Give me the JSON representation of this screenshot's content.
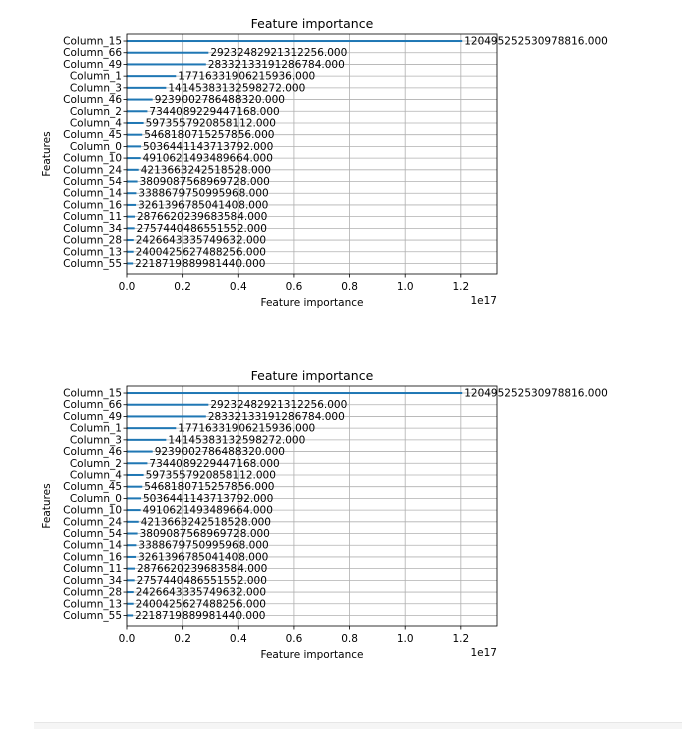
{
  "chart_data": [
    {
      "type": "bar",
      "orientation": "horizontal",
      "title": "Feature importance",
      "xlabel": "Feature importance",
      "ylabel": "Features",
      "x_offset_label": "1e17",
      "xlim": [
        0,
        1.33
      ],
      "xticks": [
        0.0,
        0.2,
        0.4,
        0.6,
        0.8,
        1.0,
        1.2
      ],
      "xtick_labels": [
        "0.0",
        "0.2",
        "0.4",
        "0.6",
        "0.8",
        "1.0",
        "1.2"
      ],
      "grid": true,
      "categories": [
        "Column_15",
        "Column_66",
        "Column_49",
        "Column_1",
        "Column_3",
        "Column_46",
        "Column_2",
        "Column_4",
        "Column_45",
        "Column_0",
        "Column_10",
        "Column_24",
        "Column_54",
        "Column_14",
        "Column_16",
        "Column_11",
        "Column_34",
        "Column_28",
        "Column_13",
        "Column_55"
      ],
      "values": [
        120495252530978816,
        29232482921312256,
        28332133191286784,
        17716331906215936,
        14145383132598272,
        9239002786488320,
        7344089229447168,
        5973557920858112,
        5468180715257856,
        5036441143713792,
        4910621493489664,
        4213663242518528,
        3809087568969728,
        3388679750995968,
        3261396785041408,
        2876620239683584,
        2757440486551552,
        2426643335749632,
        2400425627488256,
        2218719889981440
      ],
      "value_labels": [
        "120495252530978816.000",
        "29232482921312256.000",
        "28332133191286784.000",
        "17716331906215936.000",
        "14145383132598272.000",
        "9239002786488320.000",
        "7344089229447168.000",
        "5973557920858112.000",
        "5468180715257856.000",
        "5036441143713792.000",
        "4910621493489664.000",
        "4213663242518528.000",
        "3809087568969728.000",
        "3388679750995968.000",
        "3261396785041408.000",
        "2876620239683584.000",
        "2757440486551552.000",
        "2426643335749632.000",
        "2400425627488256.000",
        "2218719889981440.000"
      ],
      "bar_color": "#1f77b4"
    },
    {
      "type": "bar",
      "orientation": "horizontal",
      "title": "Feature importance",
      "xlabel": "Feature importance",
      "ylabel": "Features",
      "x_offset_label": "1e17",
      "xlim": [
        0,
        1.33
      ],
      "xticks": [
        0.0,
        0.2,
        0.4,
        0.6,
        0.8,
        1.0,
        1.2
      ],
      "xtick_labels": [
        "0.0",
        "0.2",
        "0.4",
        "0.6",
        "0.8",
        "1.0",
        "1.2"
      ],
      "grid": true,
      "categories": [
        "Column_15",
        "Column_66",
        "Column_49",
        "Column_1",
        "Column_3",
        "Column_46",
        "Column_2",
        "Column_4",
        "Column_45",
        "Column_0",
        "Column_10",
        "Column_24",
        "Column_54",
        "Column_14",
        "Column_16",
        "Column_11",
        "Column_34",
        "Column_28",
        "Column_13",
        "Column_55"
      ],
      "values": [
        120495252530978816,
        29232482921312256,
        28332133191286784,
        17716331906215936,
        14145383132598272,
        9239002786488320,
        7344089229447168,
        5973557920858112,
        5468180715257856,
        5036441143713792,
        4910621493489664,
        4213663242518528,
        3809087568969728,
        3388679750995968,
        3261396785041408,
        2876620239683584,
        2757440486551552,
        2426643335749632,
        2400425627488256,
        2218719889981440
      ],
      "value_labels": [
        "120495252530978816.000",
        "29232482921312256.000",
        "28332133191286784.000",
        "17716331906215936.000",
        "14145383132598272.000",
        "9239002786488320.000",
        "7344089229447168.000",
        "5973557920858112.000",
        "5468180715257856.000",
        "5036441143713792.000",
        "4910621493489664.000",
        "4213663242518528.000",
        "3809087568969728.000",
        "3388679750995968.000",
        "3261396785041408.000",
        "2876620239683584.000",
        "2757440486551552.000",
        "2426643335749632.000",
        "2400425627488256.000",
        "2218719889981440.000"
      ],
      "bar_color": "#1f77b4"
    }
  ]
}
